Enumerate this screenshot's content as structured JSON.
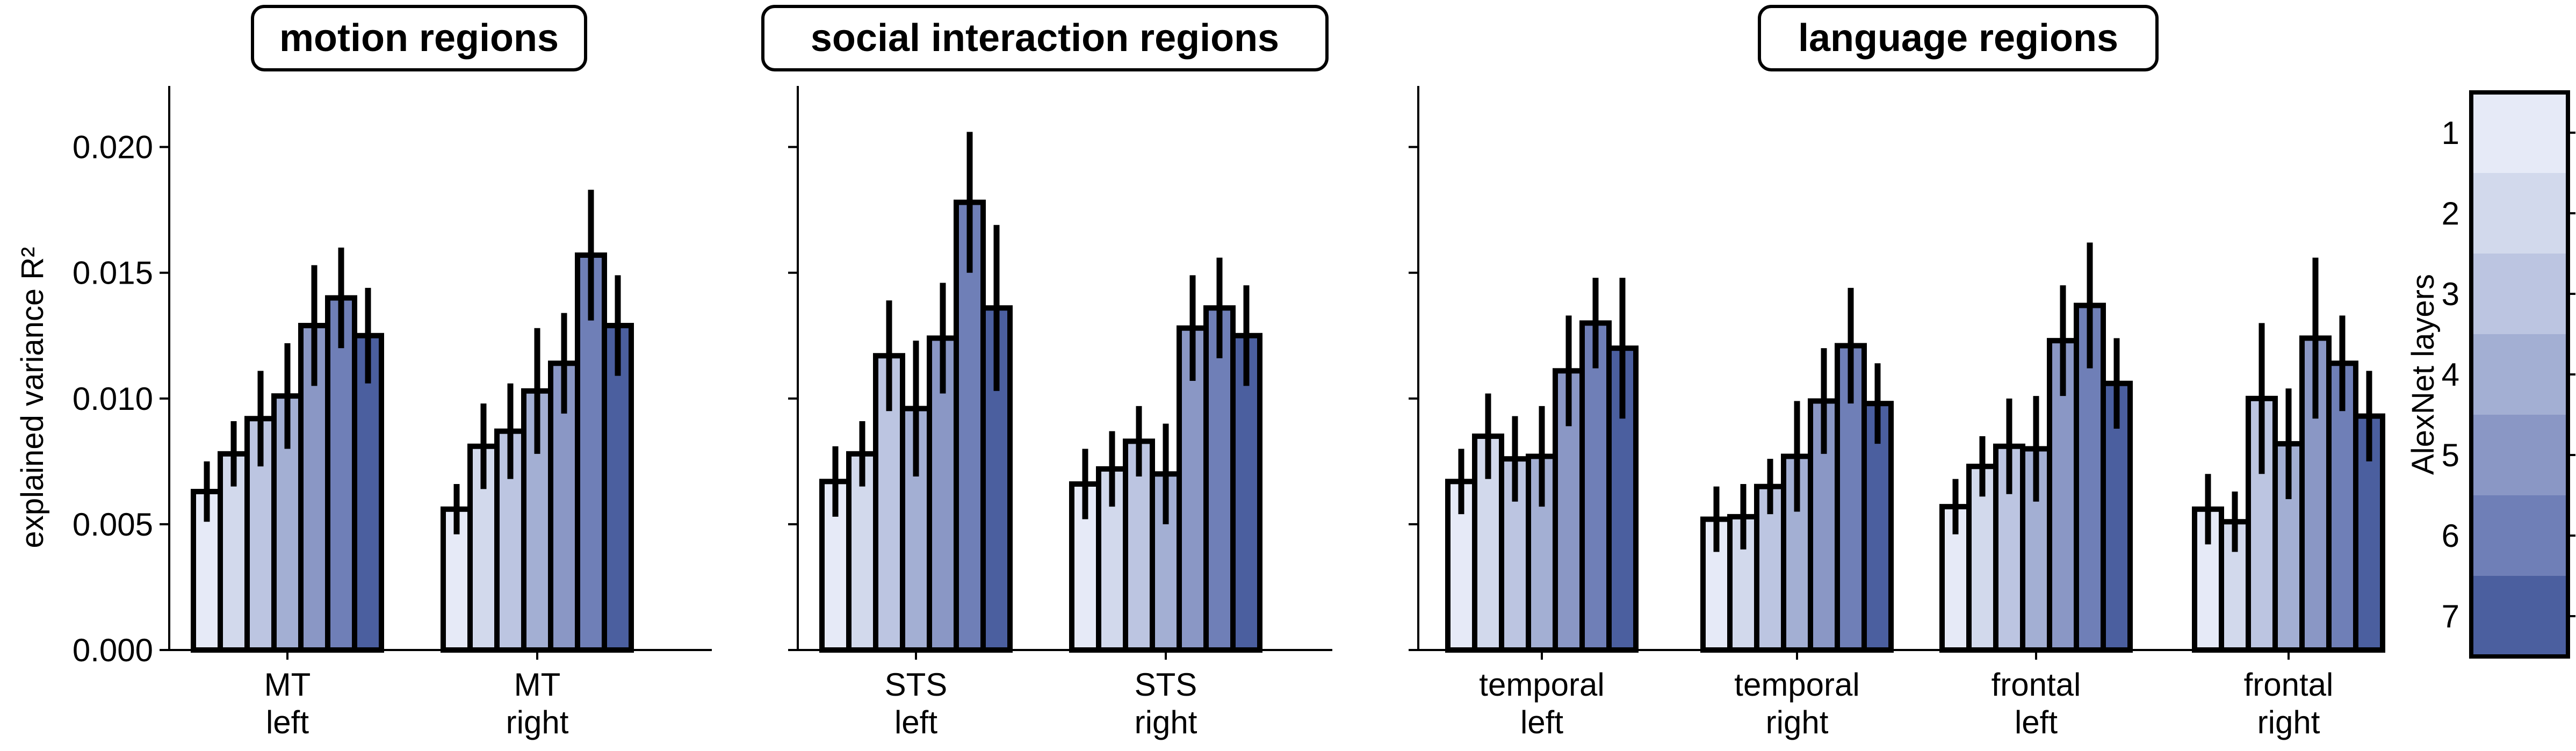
{
  "chart_data": {
    "type": "bar",
    "ylabel": "explained variance R²",
    "ylim": [
      0,
      0.022
    ],
    "yticks": [
      "0.000",
      "0.005",
      "0.010",
      "0.015",
      "0.020"
    ],
    "layer_colors": [
      "#e6eaf7",
      "#d2d9ec",
      "#bcc5e1",
      "#a3afd3",
      "#8a97c5",
      "#6f7fb7",
      "#4b5f9f"
    ],
    "colorbar": {
      "label": "AlexNet layers",
      "ticks": [
        "1",
        "2",
        "3",
        "4",
        "5",
        "6",
        "7"
      ]
    },
    "panels": [
      {
        "title": "motion regions",
        "groups": [
          {
            "label_line1": "MT",
            "label_line2": "left",
            "values": [
              0.0063,
              0.0078,
              0.0092,
              0.0101,
              0.0129,
              0.014,
              0.0125
            ],
            "errors": [
              0.0012,
              0.0013,
              0.0019,
              0.0021,
              0.0024,
              0.002,
              0.0019
            ]
          },
          {
            "label_line1": "MT",
            "label_line2": "right",
            "values": [
              0.0056,
              0.0081,
              0.0087,
              0.0103,
              0.0114,
              0.0157,
              0.0129
            ],
            "errors": [
              0.001,
              0.0017,
              0.0019,
              0.0025,
              0.002,
              0.0026,
              0.002
            ]
          }
        ]
      },
      {
        "title": "social interaction regions",
        "groups": [
          {
            "label_line1": "STS",
            "label_line2": "left",
            "values": [
              0.0067,
              0.0078,
              0.0117,
              0.0096,
              0.0124,
              0.0178,
              0.0136
            ],
            "errors": [
              0.0014,
              0.0013,
              0.0022,
              0.0027,
              0.0022,
              0.0028,
              0.0033
            ]
          },
          {
            "label_line1": "STS",
            "label_line2": "right",
            "values": [
              0.0066,
              0.0072,
              0.0083,
              0.007,
              0.0128,
              0.0136,
              0.0125
            ],
            "errors": [
              0.0014,
              0.0015,
              0.0014,
              0.002,
              0.0021,
              0.002,
              0.002
            ]
          }
        ]
      },
      {
        "title": "language regions",
        "groups": [
          {
            "label_line1": "temporal",
            "label_line2": "left",
            "values": [
              0.0067,
              0.0085,
              0.0076,
              0.0077,
              0.0111,
              0.013,
              0.012
            ],
            "errors": [
              0.0013,
              0.0017,
              0.0017,
              0.002,
              0.0022,
              0.0018,
              0.0028
            ]
          },
          {
            "label_line1": "temporal",
            "label_line2": "right",
            "values": [
              0.0052,
              0.0053,
              0.0065,
              0.0077,
              0.0099,
              0.0121,
              0.0098
            ],
            "errors": [
              0.0013,
              0.0013,
              0.0011,
              0.0022,
              0.0021,
              0.0023,
              0.0016
            ]
          },
          {
            "label_line1": "frontal",
            "label_line2": "left",
            "values": [
              0.0057,
              0.0073,
              0.0081,
              0.008,
              0.0123,
              0.0137,
              0.0106
            ],
            "errors": [
              0.0011,
              0.0012,
              0.0019,
              0.0021,
              0.0022,
              0.0025,
              0.0018
            ]
          },
          {
            "label_line1": "frontal",
            "label_line2": "right",
            "values": [
              0.0056,
              0.0051,
              0.01,
              0.0082,
              0.0124,
              0.0114,
              0.0093
            ],
            "errors": [
              0.0014,
              0.0012,
              0.003,
              0.0022,
              0.0032,
              0.0019,
              0.0018
            ]
          }
        ]
      }
    ]
  }
}
